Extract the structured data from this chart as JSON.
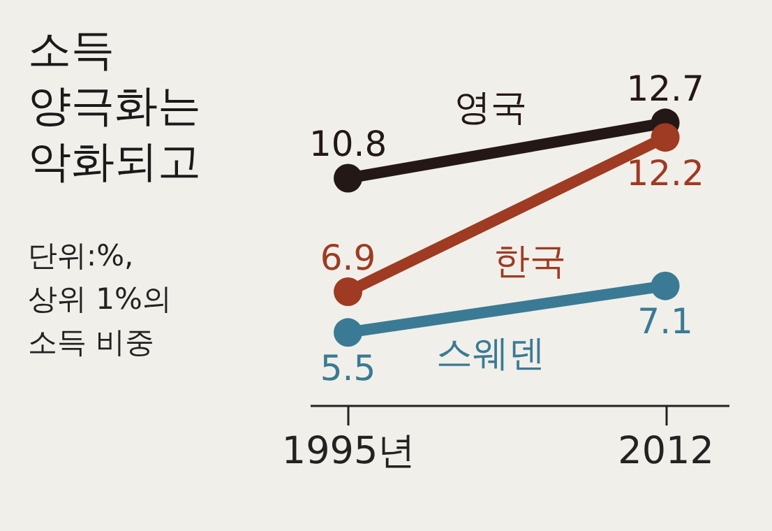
{
  "chart_data": {
    "type": "line",
    "title": "소득\n양극화는\n악화되고",
    "subtitle": "단위:%,\n상위 1%의\n소득 비중",
    "categories": [
      "1995년",
      "2012"
    ],
    "series": [
      {
        "name": "영국",
        "color": "#231815",
        "values": [
          10.8,
          12.7
        ]
      },
      {
        "name": "한국",
        "color": "#9e3b22",
        "values": [
          6.9,
          12.2
        ]
      },
      {
        "name": "스웨덴",
        "color": "#3a7a94",
        "values": [
          5.5,
          7.1
        ]
      }
    ],
    "data_labels": true,
    "marker": "circle",
    "legend": false,
    "grid": false
  }
}
